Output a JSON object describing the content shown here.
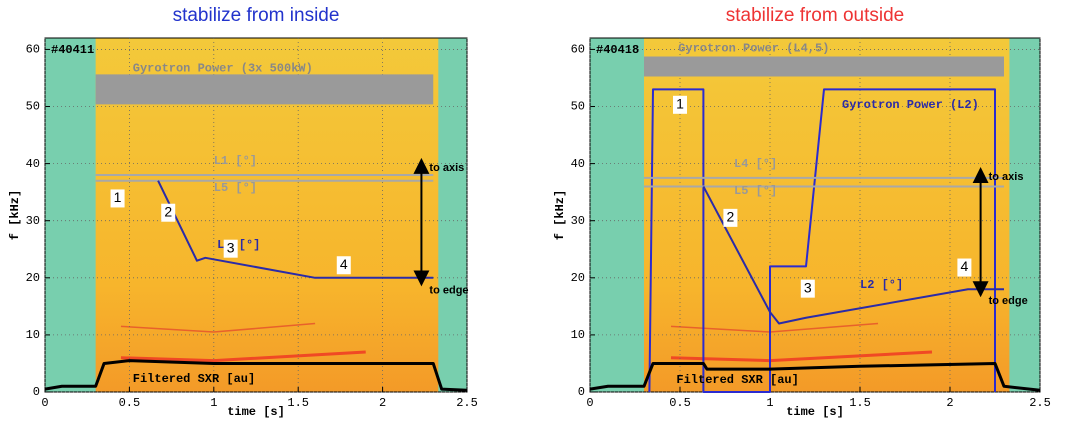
{
  "chart_data": [
    {
      "type": "line",
      "title": "stabilize from inside",
      "title_color": "#2233cc",
      "shot": "#40411",
      "xlabel": "time [s]",
      "ylabel": "f [kHz]",
      "xlim": [
        0,
        2.5
      ],
      "ylim": [
        0,
        62
      ],
      "xticks": [
        0,
        0.5,
        1,
        1.5,
        2,
        2.5
      ],
      "yticks": [
        0,
        10,
        20,
        30,
        40,
        50,
        60
      ],
      "grid": true,
      "series": [
        {
          "name": "Gyrotron Power (3x 500kW)",
          "color": "#9a9a9a",
          "line_width": 30,
          "x": [
            0.3,
            2.3
          ],
          "values": [
            53,
            53
          ]
        },
        {
          "name": "L1 [°]",
          "color": "#a8a8a8",
          "line_width": 2,
          "x": [
            0.3,
            2.3
          ],
          "values": [
            38,
            38
          ]
        },
        {
          "name": "L5 [°]",
          "color": "#a8a8a8",
          "line_width": 2,
          "x": [
            0.3,
            2.3
          ],
          "values": [
            37,
            37
          ]
        },
        {
          "name": "L2 [°]",
          "color": "#2b2ba8",
          "line_width": 2,
          "x": [
            0.67,
            0.9,
            0.95,
            1.6,
            2.3
          ],
          "values": [
            37,
            23,
            23.5,
            20,
            20
          ]
        },
        {
          "name": "Filtered SXR [au]",
          "color": "#000000",
          "line_width": 3,
          "x": [
            0,
            0.1,
            0.3,
            0.35,
            0.5,
            1,
            1.5,
            2.3,
            2.35,
            2.5
          ],
          "values": [
            0.5,
            1,
            1,
            5,
            5.5,
            5,
            5,
            5,
            0.5,
            0.3
          ]
        }
      ],
      "annotations": [
        "1",
        "2",
        "3",
        "4",
        "to axis",
        "to edge"
      ]
    },
    {
      "type": "line",
      "title": "stabilize from outside",
      "title_color": "#ee3333",
      "shot": "#40418",
      "xlabel": "time [s]",
      "ylabel": "f [kHz]",
      "xlim": [
        0,
        2.5
      ],
      "ylim": [
        0,
        62
      ],
      "xticks": [
        0,
        0.5,
        1,
        1.5,
        2,
        2.5
      ],
      "yticks": [
        0,
        10,
        20,
        30,
        40,
        50,
        60
      ],
      "grid": true,
      "series": [
        {
          "name": "Gyrotron Power (L4,5)",
          "color": "#9a9a9a",
          "line_width": 20,
          "x": [
            0.3,
            2.3
          ],
          "values": [
            57,
            57
          ]
        },
        {
          "name": "Gyrotron Power (L2)",
          "color": "#2b2bd0",
          "line_width": 2,
          "x": [
            0.33,
            0.35,
            0.63,
            0.63,
            1.0,
            1.0,
            1.2,
            1.3,
            2.25,
            2.25
          ],
          "values": [
            0,
            53,
            53,
            0,
            0,
            22,
            22,
            53,
            53,
            0
          ]
        },
        {
          "name": "L4 [°]",
          "color": "#a8a8a8",
          "line_width": 2,
          "x": [
            0.3,
            2.3
          ],
          "values": [
            37.5,
            37.5
          ]
        },
        {
          "name": "L5 [°]",
          "color": "#a8a8a8",
          "line_width": 2,
          "x": [
            0.3,
            2.3
          ],
          "values": [
            36,
            36
          ]
        },
        {
          "name": "L2 [°]",
          "color": "#2b2ba8",
          "line_width": 2,
          "x": [
            0.63,
            1.0,
            1.05,
            1.2,
            2.1,
            2.3
          ],
          "values": [
            36,
            14,
            12,
            13,
            18,
            18
          ]
        },
        {
          "name": "Filtered SXR [au]",
          "color": "#000000",
          "line_width": 3,
          "x": [
            0,
            0.1,
            0.3,
            0.35,
            0.63,
            0.65,
            1,
            1.5,
            2.25,
            2.3,
            2.5
          ],
          "values": [
            0.5,
            1,
            1,
            5,
            5,
            4,
            4,
            4.5,
            5,
            1,
            0.3
          ]
        }
      ],
      "annotations": [
        "1",
        "2",
        "3",
        "4",
        "to axis",
        "to edge"
      ]
    }
  ]
}
